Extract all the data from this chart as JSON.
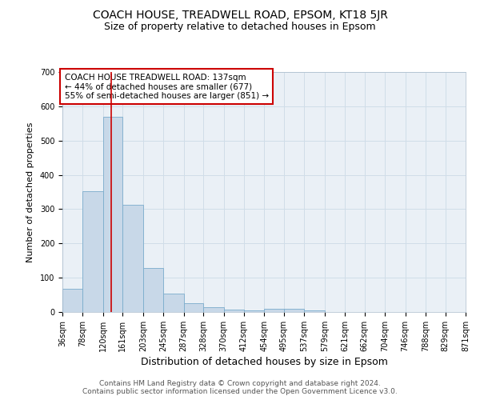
{
  "title": "COACH HOUSE, TREADWELL ROAD, EPSOM, KT18 5JR",
  "subtitle": "Size of property relative to detached houses in Epsom",
  "xlabel": "Distribution of detached houses by size in Epsom",
  "ylabel": "Number of detached properties",
  "bin_edges": [
    36,
    78,
    120,
    161,
    203,
    245,
    287,
    328,
    370,
    412,
    454,
    495,
    537,
    579,
    621,
    662,
    704,
    746,
    788,
    829,
    871
  ],
  "bar_heights": [
    68,
    353,
    570,
    312,
    128,
    53,
    25,
    15,
    7,
    5,
    10,
    10,
    5,
    0,
    0,
    0,
    0,
    0,
    0,
    0
  ],
  "bar_color": "#c8d8e8",
  "bar_edge_color": "#7aaccc",
  "grid_color": "#d0dde8",
  "bg_color": "#eaf0f6",
  "property_size": 137,
  "red_line_color": "#cc0000",
  "annotation_text": "COACH HOUSE TREADWELL ROAD: 137sqm\n← 44% of detached houses are smaller (677)\n55% of semi-detached houses are larger (851) →",
  "annotation_box_color": "#ffffff",
  "annotation_box_edge": "#cc0000",
  "ylim": [
    0,
    700
  ],
  "yticks": [
    0,
    100,
    200,
    300,
    400,
    500,
    600,
    700
  ],
  "footer_line1": "Contains HM Land Registry data © Crown copyright and database right 2024.",
  "footer_line2": "Contains public sector information licensed under the Open Government Licence v3.0.",
  "title_fontsize": 10,
  "subtitle_fontsize": 9,
  "xlabel_fontsize": 9,
  "ylabel_fontsize": 8,
  "tick_fontsize": 7,
  "annotation_fontsize": 7.5,
  "footer_fontsize": 6.5
}
